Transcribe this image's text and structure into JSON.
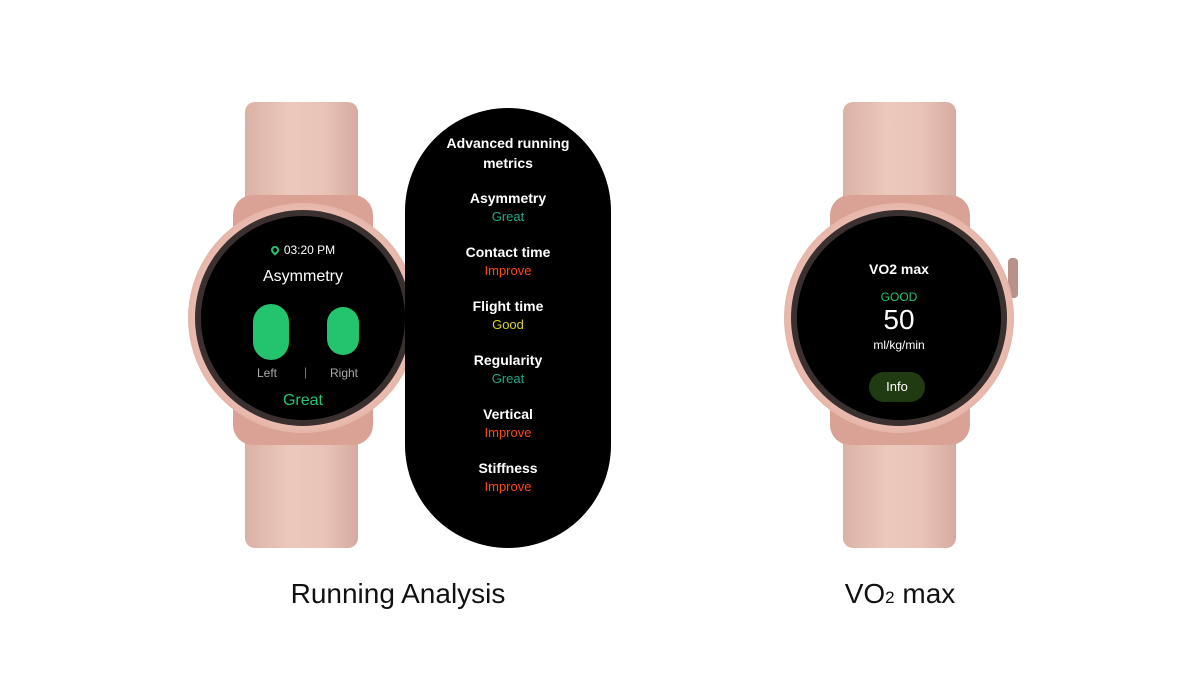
{
  "running": {
    "time": "03:20 PM",
    "title": "Asymmetry",
    "left_label": "Left",
    "right_label": "Right",
    "divider": "|",
    "status": "Great",
    "caption": "Running Analysis"
  },
  "metrics_panel": {
    "title_line1": "Advanced running",
    "title_line2": "metrics",
    "items": [
      {
        "name": "Asymmetry",
        "status": "Great",
        "color": "#1fa98a"
      },
      {
        "name": "Contact time",
        "status": "Improve",
        "color": "#ff4a12"
      },
      {
        "name": "Flight time",
        "status": "Good",
        "color": "#d8d21e"
      },
      {
        "name": "Regularity",
        "status": "Great",
        "color": "#1fa98a"
      },
      {
        "name": "Vertical",
        "status": "Improve",
        "color": "#ff4a12"
      },
      {
        "name": "Stiffness",
        "status": "Improve",
        "color": "#ff4a12"
      }
    ]
  },
  "vo2": {
    "title": "VO2 max",
    "rating": "GOOD",
    "value": "50",
    "unit": "ml/kg/min",
    "info_button": "Info",
    "caption_main": "VO",
    "caption_sub": "2",
    "caption_rest": " max"
  },
  "colors": {
    "accent_green": "#23c46d",
    "strap": "#e9c3b8",
    "case": "#d9a294"
  },
  "icons": {
    "location": "location-pin-icon"
  }
}
